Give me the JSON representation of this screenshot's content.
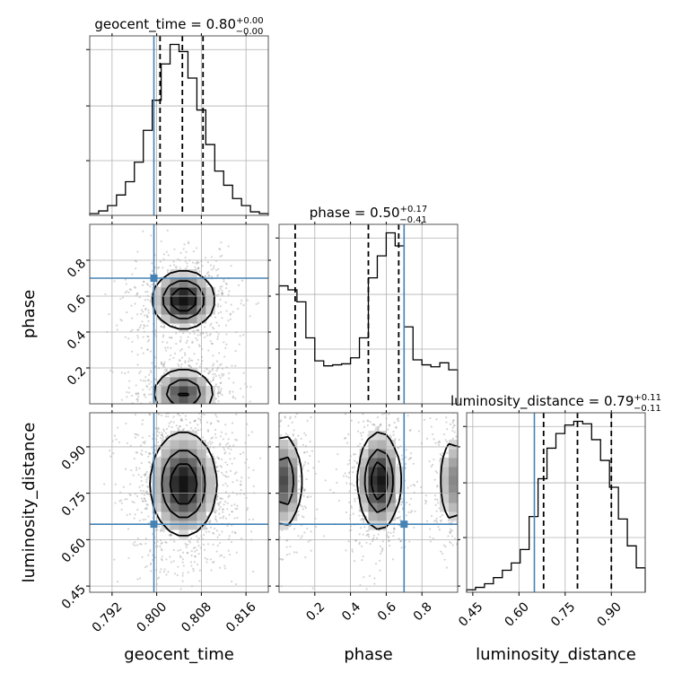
{
  "chart_data": {
    "type": "corner",
    "parameters": [
      "geocent_time",
      "phase",
      "luminosity_distance"
    ],
    "truths": {
      "geocent_time": 0.7995,
      "phase": 0.7,
      "luminosity_distance": 0.65
    },
    "ranges": {
      "geocent_time": [
        0.788,
        0.82
      ],
      "phase": [
        0.0,
        1.0
      ],
      "luminosity_distance": [
        0.43,
        1.01
      ]
    },
    "titles": [
      {
        "param": "geocent_time",
        "text": "geocent_time = 0.80",
        "sup": "+0.00",
        "sub": "−0.00"
      },
      {
        "param": "phase",
        "text": "phase = 0.50",
        "sup": "+0.17",
        "sub": "−0.41"
      },
      {
        "param": "luminosity_distance",
        "text": "luminosity_distance = 0.79",
        "sup": "+0.11",
        "sub": "−0.11"
      }
    ],
    "axis_labels": {
      "x": [
        "geocent_time",
        "phase",
        "luminosity_distance"
      ],
      "y": [
        "phase",
        "luminosity_distance"
      ]
    },
    "ticks": {
      "geocent_time": {
        "values": [
          0.792,
          0.8,
          0.808,
          0.816
        ],
        "labels": [
          "0.792",
          "0.800",
          "0.808",
          "0.816"
        ]
      },
      "phase": {
        "values": [
          0.2,
          0.4,
          0.6,
          0.8
        ],
        "labels": [
          "0.2",
          "0.4",
          "0.6",
          "0.8"
        ]
      },
      "luminosity_distance": {
        "values": [
          0.45,
          0.6,
          0.75,
          0.9
        ],
        "labels": [
          "0.45",
          "0.60",
          "0.75",
          "0.90"
        ]
      }
    },
    "histograms": {
      "geocent_time": {
        "edges": [
          0.788,
          0.7896,
          0.7912,
          0.7928,
          0.7944,
          0.796,
          0.7976,
          0.7992,
          0.8008,
          0.8024,
          0.804,
          0.8056,
          0.8072,
          0.8088,
          0.8104,
          0.812,
          0.8136,
          0.8152,
          0.8168,
          0.8184,
          0.82
        ],
        "counts": [
          2,
          5,
          11,
          23,
          38,
          60,
          96,
          130,
          171,
          193,
          185,
          155,
          119,
          80,
          50,
          34,
          19,
          11,
          4,
          2
        ],
        "quantiles": [
          0.8006,
          0.8046,
          0.8083
        ]
      },
      "phase": {
        "edges": [
          0.0,
          0.05,
          0.1,
          0.15,
          0.2,
          0.25,
          0.3,
          0.35,
          0.4,
          0.45,
          0.5,
          0.55,
          0.6,
          0.65,
          0.7,
          0.75,
          0.8,
          0.85,
          0.9,
          0.95,
          1.0
        ],
        "counts": [
          118,
          114,
          102,
          66,
          43,
          38,
          39,
          40,
          46,
          66,
          126,
          148,
          171,
          158,
          77,
          44,
          39,
          37,
          41,
          34
        ],
        "quantiles": [
          0.09,
          0.5,
          0.67
        ]
      },
      "luminosity_distance": {
        "edges": [
          0.43,
          0.459,
          0.488,
          0.517,
          0.546,
          0.575,
          0.604,
          0.633,
          0.662,
          0.691,
          0.72,
          0.749,
          0.778,
          0.807,
          0.836,
          0.865,
          0.894,
          0.923,
          0.952,
          0.981,
          1.01
        ],
        "counts": [
          2,
          4,
          7,
          12,
          18,
          24,
          35,
          62,
          93,
          118,
          130,
          137,
          140,
          138,
          125,
          108,
          86,
          60,
          38,
          20
        ],
        "quantiles": [
          0.68,
          0.79,
          0.9
        ]
      }
    },
    "density_2d": [
      {
        "x": "geocent_time",
        "y": "phase",
        "peaks": [
          {
            "x": 0.8048,
            "y": 0.58,
            "sx": 0.0028,
            "sy": 0.08,
            "w": 1.0
          },
          {
            "x": 0.8048,
            "y": 0.06,
            "sx": 0.0028,
            "sy": 0.07,
            "w": 0.75
          }
        ],
        "contour_levels": [
          0.15,
          0.45,
          0.75
        ]
      },
      {
        "x": "geocent_time",
        "y": "luminosity_distance",
        "peaks": [
          {
            "x": 0.8048,
            "y": 0.78,
            "sx": 0.003,
            "sy": 0.085,
            "w": 1.0
          }
        ],
        "contour_levels": [
          0.15,
          0.45,
          0.75
        ]
      },
      {
        "x": "phase",
        "y": "luminosity_distance",
        "peaks": [
          {
            "x": 0.56,
            "y": 0.79,
            "sx": 0.06,
            "sy": 0.08,
            "w": 1.0
          },
          {
            "x": 0.03,
            "y": 0.79,
            "sx": 0.05,
            "sy": 0.08,
            "w": 0.75
          },
          {
            "x": 0.97,
            "y": 0.79,
            "sx": 0.04,
            "sy": 0.08,
            "w": 0.5
          }
        ],
        "contour_levels": [
          0.15,
          0.45,
          0.75
        ]
      }
    ]
  }
}
